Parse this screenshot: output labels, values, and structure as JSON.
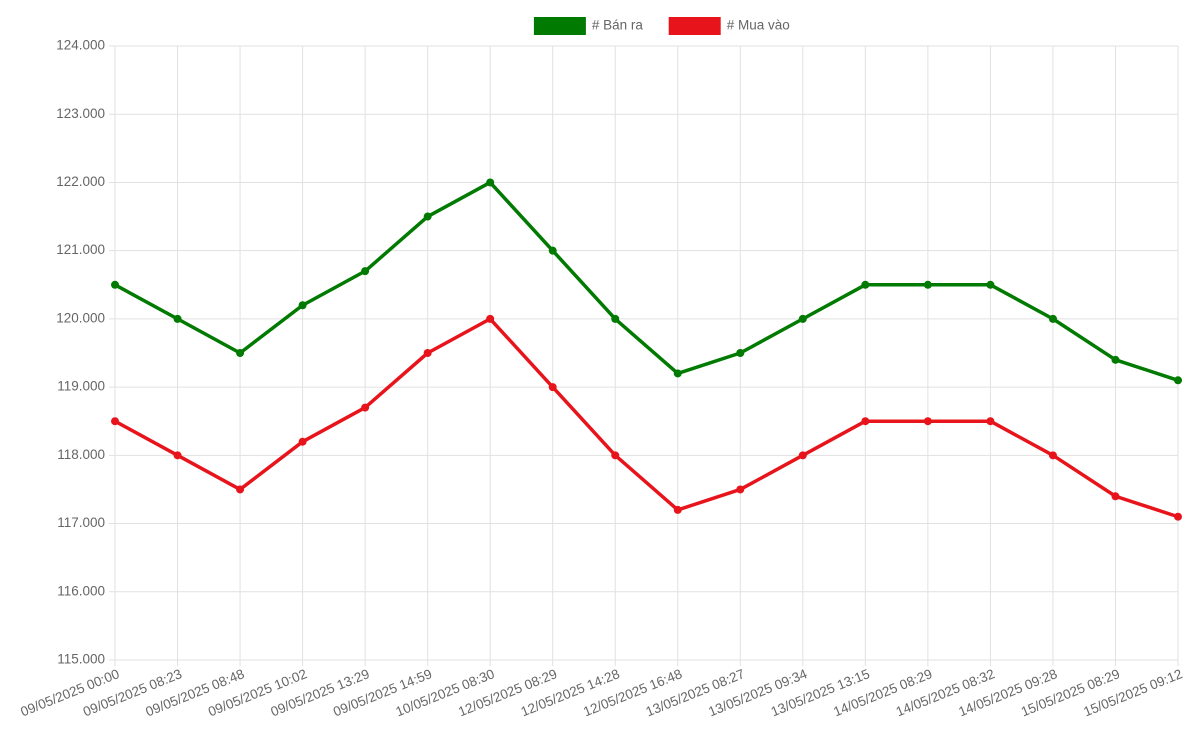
{
  "chart_data": {
    "type": "line",
    "categories": [
      "09/05/2025 00:00",
      "09/05/2025 08:23",
      "09/05/2025 08:48",
      "09/05/2025 10:02",
      "09/05/2025 13:29",
      "09/05/2025 14:59",
      "10/05/2025 08:30",
      "12/05/2025 08:29",
      "12/05/2025 14:28",
      "12/05/2025 16:48",
      "13/05/2025 08:27",
      "13/05/2025 09:34",
      "13/05/2025 13:15",
      "14/05/2025 08:29",
      "14/05/2025 08:32",
      "14/05/2025 09:28",
      "15/05/2025 08:29",
      "15/05/2025 09:12"
    ],
    "series": [
      {
        "name": "# Bán ra",
        "color": "#007a00",
        "values": [
          120500,
          120000,
          119500,
          120200,
          120700,
          121500,
          122000,
          121000,
          120000,
          119200,
          119500,
          120000,
          120500,
          120500,
          120500,
          120000,
          119400,
          119100
        ]
      },
      {
        "name": "# Mua vào",
        "color": "#e8141c",
        "values": [
          118500,
          118000,
          117500,
          118200,
          118700,
          119500,
          120000,
          119000,
          118000,
          117200,
          117500,
          118000,
          118500,
          118500,
          118500,
          118000,
          117400,
          117100
        ]
      }
    ],
    "ylim": [
      115000,
      124000
    ],
    "yticks": [
      {
        "value": 115000,
        "label": "115.000"
      },
      {
        "value": 116000,
        "label": "116.000"
      },
      {
        "value": 117000,
        "label": "117.000"
      },
      {
        "value": 118000,
        "label": "118.000"
      },
      {
        "value": 119000,
        "label": "119.000"
      },
      {
        "value": 120000,
        "label": "120.000"
      },
      {
        "value": 121000,
        "label": "121.000"
      },
      {
        "value": 122000,
        "label": "122.000"
      },
      {
        "value": 123000,
        "label": "123.000"
      },
      {
        "value": 124000,
        "label": "124.000"
      }
    ],
    "grid": true,
    "legend": "top"
  }
}
